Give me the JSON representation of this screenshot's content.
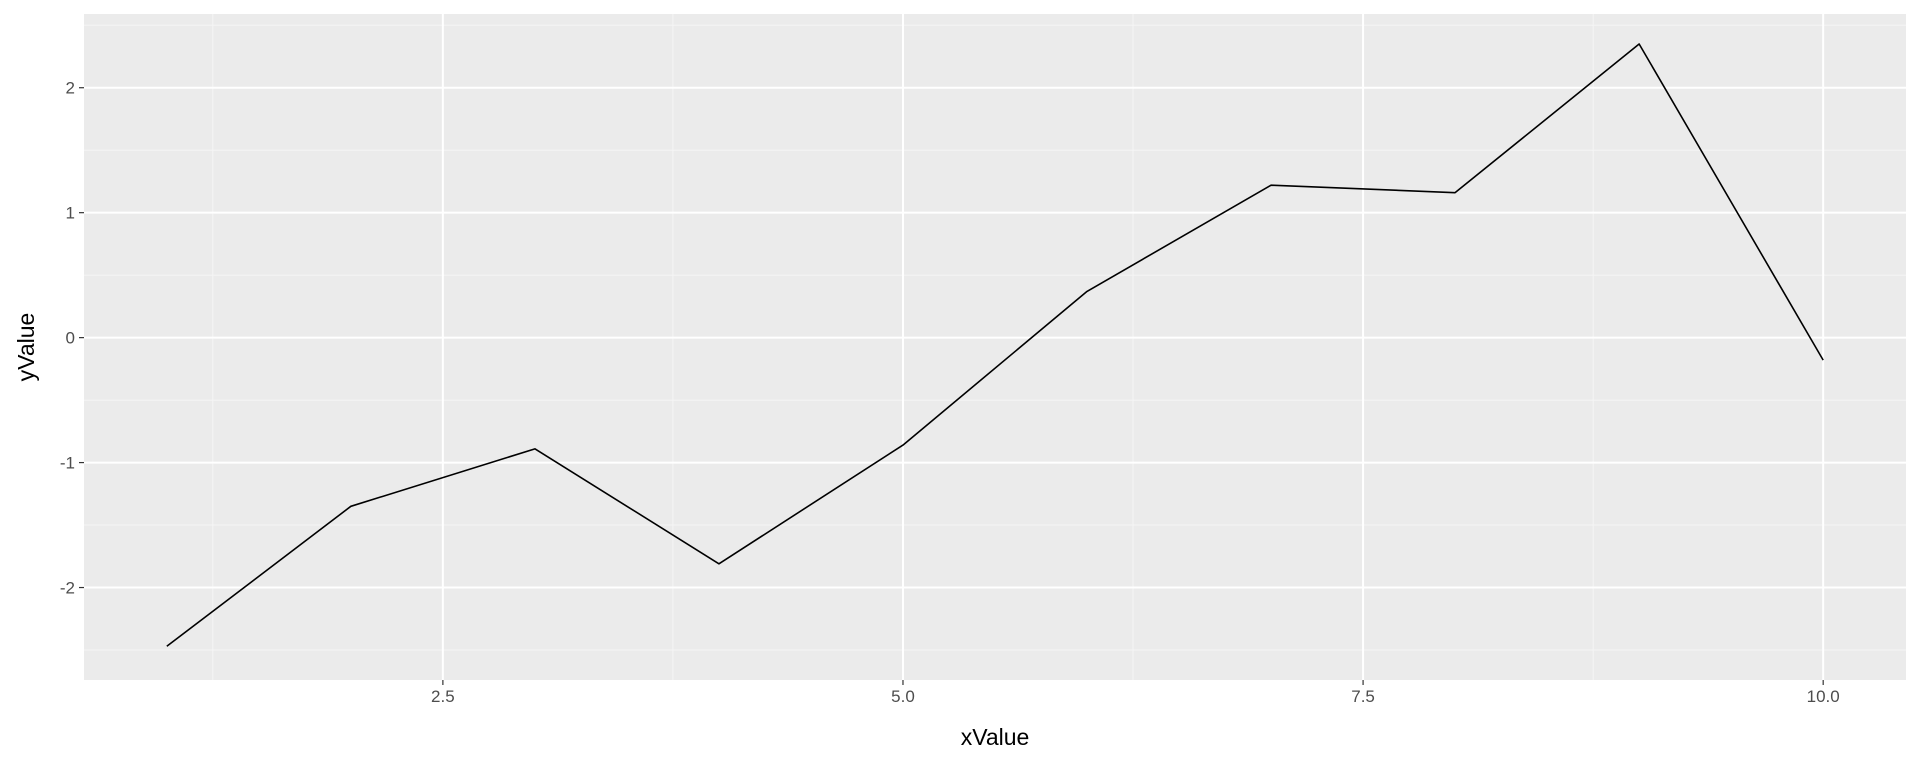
{
  "chart_data": {
    "type": "line",
    "title": "",
    "xlabel": "xValue",
    "ylabel": "yValue",
    "x": [
      1,
      2,
      3,
      4,
      5,
      6,
      7,
      8,
      9,
      10
    ],
    "series": [
      {
        "values": [
          -2.47,
          -1.35,
          -0.89,
          -1.81,
          -0.86,
          0.37,
          1.22,
          1.16,
          2.35,
          -0.18
        ]
      }
    ],
    "xlim": [
      0.55,
      10.45
    ],
    "ylim": [
      -2.74,
      2.59
    ],
    "x_ticks": [
      2.5,
      5.0,
      7.5,
      10.0
    ],
    "x_tick_labels": [
      "2.5",
      "5.0",
      "7.5",
      "10.0"
    ],
    "x_minor_ticks": [
      1.25,
      3.75,
      6.25,
      8.75
    ],
    "y_ticks": [
      2,
      1,
      0,
      -1,
      -2
    ],
    "y_tick_labels": [
      "2",
      "1",
      "0",
      "-1",
      "-2"
    ],
    "y_minor_ticks": [
      2.5,
      1.5,
      0.5,
      -0.5,
      -1.5,
      -2.5
    ],
    "grid": true,
    "legend": "none",
    "colors": {
      "panel_background": "#ebebeb",
      "grid_major": "#ffffff",
      "grid_minor": "#f5f5f5",
      "line": "#000000",
      "tick_label": "#4d4d4d",
      "tick_mark": "#333333",
      "axis_title": "#000000"
    }
  }
}
